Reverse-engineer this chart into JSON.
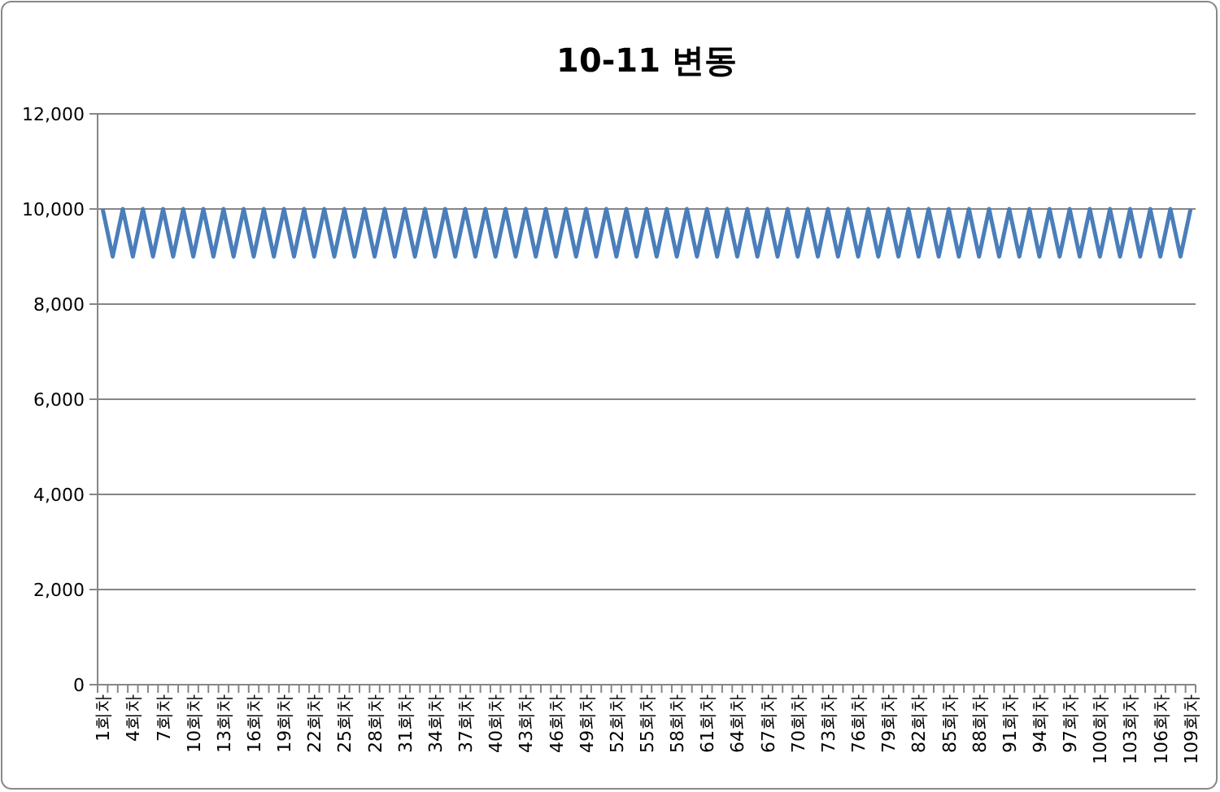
{
  "chart_data": {
    "type": "line",
    "title": "10-11 변동",
    "categories": [
      "1회차",
      null,
      null,
      "4회차",
      null,
      null,
      "7회차",
      null,
      null,
      "10회차",
      null,
      null,
      "13회차",
      null,
      null,
      "16회차",
      null,
      null,
      "19회차",
      null,
      null,
      "22회차",
      null,
      null,
      "25회차",
      null,
      null,
      "28회차",
      null,
      null,
      "31회차",
      null,
      null,
      "34회차",
      null,
      null,
      "37회차",
      null,
      null,
      "40회차",
      null,
      null,
      "43회차",
      null,
      null,
      "46회차",
      null,
      null,
      "49회차",
      null,
      null,
      "52회차",
      null,
      null,
      "55회차",
      null,
      null,
      "58회차",
      null,
      null,
      "61회차",
      null,
      null,
      "64회차",
      null,
      null,
      "67회차",
      null,
      null,
      "70회차",
      null,
      null,
      "73회차",
      null,
      null,
      "76회차",
      null,
      null,
      "79회차",
      null,
      null,
      "82회차",
      null,
      null,
      "85회차",
      null,
      null,
      "88회차",
      null,
      null,
      "91회차",
      null,
      null,
      "94회차",
      null,
      null,
      "97회차",
      null,
      null,
      "100회차",
      null,
      null,
      "103회차",
      null,
      null,
      "106회차",
      null,
      null,
      "109회차"
    ],
    "series": [
      {
        "color": "#4a7ebb",
        "values": [
          10000,
          9000,
          10000,
          9000,
          10000,
          9000,
          10000,
          9000,
          10000,
          9000,
          10000,
          9000,
          10000,
          9000,
          10000,
          9000,
          10000,
          9000,
          10000,
          9000,
          10000,
          9000,
          10000,
          9000,
          10000,
          9000,
          10000,
          9000,
          10000,
          9000,
          10000,
          9000,
          10000,
          9000,
          10000,
          9000,
          10000,
          9000,
          10000,
          9000,
          10000,
          9000,
          10000,
          9000,
          10000,
          9000,
          10000,
          9000,
          10000,
          9000,
          10000,
          9000,
          10000,
          9000,
          10000,
          9000,
          10000,
          9000,
          10000,
          9000,
          10000,
          9000,
          10000,
          9000,
          10000,
          9000,
          10000,
          9000,
          10000,
          9000,
          10000,
          9000,
          10000,
          9000,
          10000,
          9000,
          10000,
          9000,
          10000,
          9000,
          10000,
          9000,
          10000,
          9000,
          10000,
          9000,
          10000,
          9000,
          10000,
          9000,
          10000,
          9000,
          10000,
          9000,
          10000,
          9000,
          10000,
          9000,
          10000,
          9000,
          10000,
          9000,
          10000,
          9000,
          10000,
          9000,
          10000,
          9000,
          10000
        ]
      }
    ],
    "ylim": [
      0,
      12000
    ],
    "yticks": [
      {
        "value": 0,
        "label": "0"
      },
      {
        "value": 2000,
        "label": "2,000"
      },
      {
        "value": 4000,
        "label": "4,000"
      },
      {
        "value": 6000,
        "label": "6,000"
      },
      {
        "value": 8000,
        "label": "8,000"
      },
      {
        "value": 10000,
        "label": "10,000"
      },
      {
        "value": 12000,
        "label": "12,000"
      }
    ],
    "grid": "y",
    "marker": "none",
    "line_style": "solid"
  }
}
